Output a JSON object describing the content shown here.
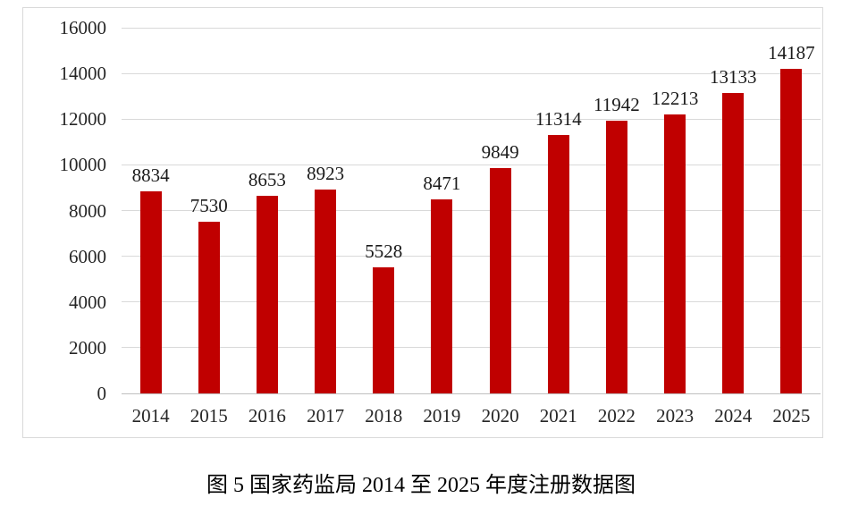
{
  "chart_data": {
    "type": "bar",
    "categories": [
      "2014",
      "2015",
      "2016",
      "2017",
      "2018",
      "2019",
      "2020",
      "2021",
      "2022",
      "2023",
      "2024",
      "2025"
    ],
    "values": [
      8834,
      7530,
      8653,
      8923,
      5528,
      8471,
      9849,
      11314,
      11942,
      12213,
      13133,
      14187
    ],
    "data_labels": [
      "8834",
      "7530",
      "8653",
      "8923",
      "5528",
      "8471",
      "9849",
      "11314",
      "11942",
      "12213",
      "13133",
      "14187"
    ],
    "title": "",
    "xlabel": "",
    "ylabel": "",
    "ylim": [
      0,
      16000
    ],
    "yticks": [
      0,
      2000,
      4000,
      6000,
      8000,
      10000,
      12000,
      14000,
      16000
    ],
    "grid": true,
    "legend_position": "none",
    "bar_color": "#c00000",
    "gridline_color": "#d9d9d9",
    "axis_line_color": "#bfbfbf",
    "frame_border_color": "#d9d9d9",
    "tick_label_color": "#262626",
    "data_label_color": "#1a1a1a"
  },
  "caption": "图 5 国家药监局 2014 至 2025 年度注册数据图"
}
